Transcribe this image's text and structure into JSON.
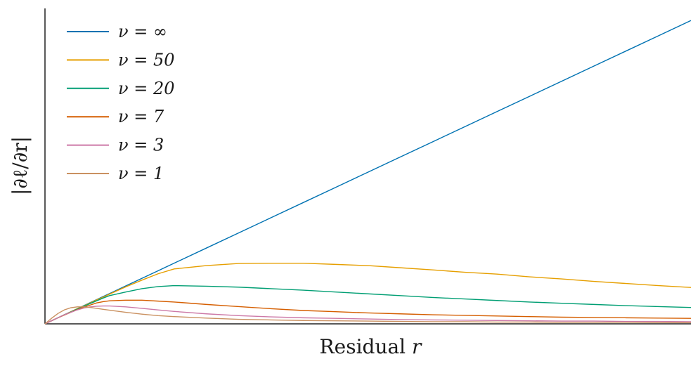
{
  "chart_data": {
    "type": "line",
    "xlabel": "Residual r",
    "xlabel_parts": {
      "text": "Residual",
      "var": "r"
    },
    "ylabel": "|∂ℓ/∂r|",
    "legend_position": "top-left",
    "grid": false,
    "x_ticks_visible": false,
    "y_ticks_visible": false,
    "xlim": [
      0,
      10
    ],
    "ylim": [
      0,
      10.4
    ],
    "x": [
      0,
      0.1,
      0.2,
      0.3,
      0.4,
      0.5,
      0.6,
      0.7,
      0.8,
      0.9,
      1,
      1.25,
      1.5,
      1.75,
      2,
      2.5,
      3,
      3.5,
      4,
      4.5,
      5,
      5.5,
      6,
      6.5,
      7,
      7.5,
      8,
      8.5,
      9,
      9.5,
      10
    ],
    "series": [
      {
        "name": "ν = ∞",
        "label": "ν = ∞",
        "color": "#0072B2",
        "values": [
          0,
          0.1,
          0.2,
          0.3,
          0.4,
          0.5,
          0.6,
          0.7,
          0.8,
          0.9,
          1,
          1.25,
          1.5,
          1.75,
          2,
          2.5,
          3,
          3.5,
          4,
          4.5,
          5,
          5.5,
          6,
          6.5,
          7,
          7.5,
          8,
          8.5,
          9,
          9.5,
          10
        ]
      },
      {
        "name": "ν = 50",
        "label": "ν = 50",
        "color": "#E69F00",
        "values": [
          0,
          0.1,
          0.2,
          0.3,
          0.4,
          0.5,
          0.59,
          0.69,
          0.79,
          0.88,
          0.98,
          1.22,
          1.44,
          1.65,
          1.81,
          1.92,
          1.99,
          2.0,
          2.0,
          1.96,
          1.92,
          1.85,
          1.78,
          1.7,
          1.64,
          1.55,
          1.48,
          1.4,
          1.33,
          1.26,
          1.2
        ]
      },
      {
        "name": "ν = 20",
        "label": "ν = 20",
        "color": "#009E73",
        "values": [
          0,
          0.1,
          0.2,
          0.3,
          0.39,
          0.49,
          0.58,
          0.67,
          0.76,
          0.85,
          0.93,
          1.05,
          1.16,
          1.23,
          1.26,
          1.24,
          1.21,
          1.16,
          1.11,
          1.05,
          0.99,
          0.93,
          0.87,
          0.82,
          0.77,
          0.72,
          0.68,
          0.64,
          0.6,
          0.57,
          0.54
        ]
      },
      {
        "name": "ν = 7",
        "label": "ν = 7",
        "color": "#D55E00",
        "values": [
          0,
          0.1,
          0.2,
          0.29,
          0.38,
          0.47,
          0.55,
          0.62,
          0.69,
          0.73,
          0.76,
          0.78,
          0.78,
          0.75,
          0.72,
          0.64,
          0.57,
          0.5,
          0.44,
          0.4,
          0.36,
          0.33,
          0.3,
          0.28,
          0.26,
          0.24,
          0.22,
          0.21,
          0.2,
          0.19,
          0.18
        ]
      },
      {
        "name": "ν = 3",
        "label": "ν = 3",
        "color": "#CC79A7",
        "values": [
          0,
          0.1,
          0.2,
          0.3,
          0.38,
          0.46,
          0.52,
          0.56,
          0.58,
          0.59,
          0.59,
          0.56,
          0.51,
          0.46,
          0.41,
          0.33,
          0.27,
          0.23,
          0.2,
          0.18,
          0.16,
          0.14,
          0.13,
          0.12,
          0.11,
          0.1,
          0.09,
          0.09,
          0.08,
          0.08,
          0.07
        ]
      },
      {
        "name": "ν = 1",
        "label": "ν = 1",
        "color": "#CA9161",
        "values": [
          0,
          0.18,
          0.34,
          0.46,
          0.53,
          0.56,
          0.56,
          0.54,
          0.51,
          0.48,
          0.45,
          0.38,
          0.32,
          0.27,
          0.24,
          0.19,
          0.15,
          0.13,
          0.11,
          0.1,
          0.09,
          0.08,
          0.07,
          0.07,
          0.06,
          0.06,
          0.05,
          0.05,
          0.05,
          0.04,
          0.04
        ]
      }
    ]
  }
}
